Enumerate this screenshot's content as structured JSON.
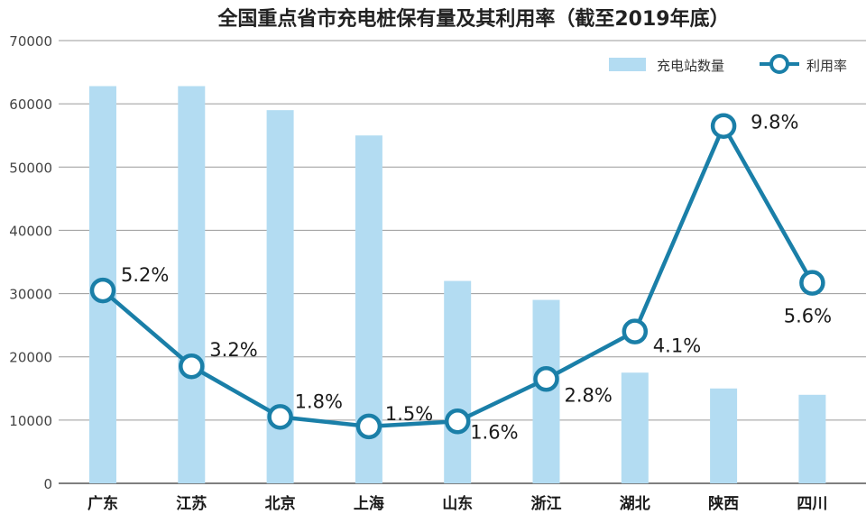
{
  "chart_data": {
    "type": "bar",
    "title": "全国重点省市充电桩保有量及其利用率（截至2019年底）",
    "categories": [
      "广东",
      "江苏",
      "北京",
      "上海",
      "山东",
      "浙江",
      "湖北",
      "陕西",
      "四川"
    ],
    "ylim": [
      0,
      70000
    ],
    "yticks": [
      0,
      10000,
      20000,
      30000,
      40000,
      50000,
      60000,
      70000
    ],
    "grid": true,
    "legend_position": "top-right",
    "series": [
      {
        "name": "充电站数量",
        "type": "bar",
        "color": "#b3dcf2",
        "values": [
          62800,
          62800,
          59000,
          55000,
          32000,
          29000,
          17500,
          15000,
          14000
        ]
      },
      {
        "name": "利用率",
        "type": "line",
        "color": "#1a7fa8",
        "axis_values": [
          30500,
          18500,
          10500,
          9000,
          9800,
          16500,
          24000,
          56500,
          31700
        ],
        "labels": [
          "5.2%",
          "3.2%",
          "1.8%",
          "1.5%",
          "1.6%",
          "2.8%",
          "4.1%",
          "9.8%",
          "5.6%"
        ]
      }
    ]
  }
}
